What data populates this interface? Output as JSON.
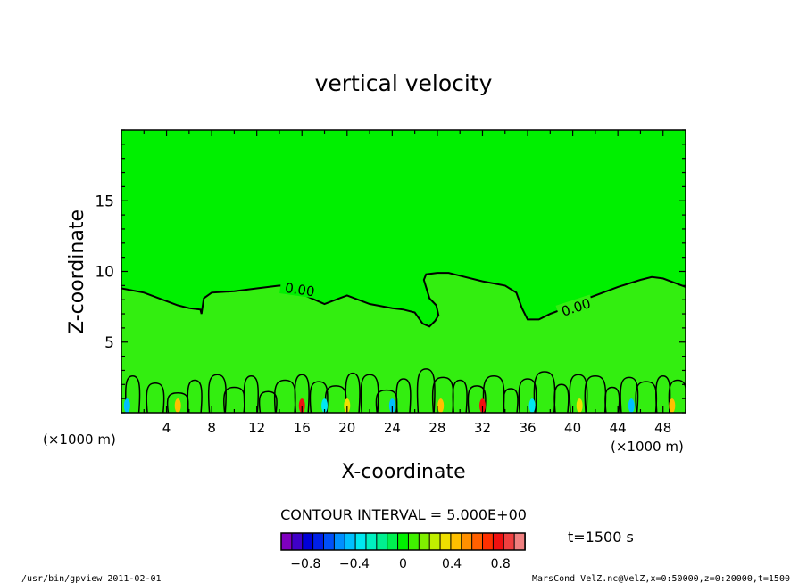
{
  "chart_data": {
    "type": "heatmap",
    "title": "vertical velocity",
    "xlabel": "X-coordinate",
    "ylabel": "Z-coordinate",
    "x_unit": "(×1000 m)",
    "x_ticks": [
      4,
      8,
      12,
      16,
      20,
      24,
      28,
      32,
      36,
      40,
      44,
      48
    ],
    "y_ticks": [
      5,
      10,
      15
    ],
    "xlim": [
      0,
      50
    ],
    "ylim": [
      0,
      20
    ],
    "contour_label": "0.00",
    "contour_interval_text": "CONTOUR INTERVAL = 5.000E+00",
    "time_text": "t=1500 s",
    "colorbar": {
      "tick_labels": [
        "-0.8",
        "-0.4",
        "0",
        "0.4",
        "0.8"
      ],
      "tick_values": [
        -0.8,
        -0.4,
        0,
        0.4,
        0.8
      ],
      "range": [
        -1.0,
        1.0
      ],
      "colors": [
        "#7f00bf",
        "#3f00c8",
        "#0000d8",
        "#0020e8",
        "#0050f8",
        "#0090ff",
        "#00c0ff",
        "#00e8f0",
        "#00f0c0",
        "#00f090",
        "#00f050",
        "#00f000",
        "#40f000",
        "#80f000",
        "#c0f000",
        "#f0e000",
        "#ffc000",
        "#ff9000",
        "#ff6000",
        "#ff3000",
        "#f01010",
        "#f04040",
        "#f08080"
      ]
    },
    "background_color": "#00f000",
    "lower_band_color": "#33ee10",
    "contour_line_color": "#000000",
    "zero_contour": {
      "x": [
        0,
        2,
        4,
        5,
        6,
        7,
        7.1,
        7.3,
        8,
        10,
        12,
        14,
        15,
        16,
        18,
        20,
        22,
        24,
        25,
        26,
        26.7,
        27.3,
        27.8,
        28.1,
        27.9,
        27.3,
        26.8,
        27,
        28,
        29,
        30,
        32,
        34,
        35,
        35.5,
        36,
        37,
        38,
        39,
        40,
        42,
        44,
        46,
        47,
        48,
        50
      ],
      "y": [
        8.8,
        8.5,
        7.9,
        7.6,
        7.4,
        7.3,
        7.0,
        8.1,
        8.5,
        8.6,
        8.8,
        9.0,
        8.9,
        8.4,
        7.7,
        8.3,
        7.7,
        7.4,
        7.3,
        7.1,
        6.3,
        6.1,
        6.5,
        6.9,
        7.6,
        8.1,
        9.4,
        9.8,
        9.9,
        9.9,
        9.7,
        9.3,
        9.0,
        8.5,
        7.4,
        6.6,
        6.6,
        7.0,
        7.3,
        7.7,
        8.3,
        8.9,
        9.4,
        9.6,
        9.5,
        8.9
      ]
    }
  },
  "footer": {
    "left": "/usr/bin/gpview  2011-02-01",
    "right": "MarsCond_VelZ.nc@VelZ,x=0:50000,z=0:20000,t=1500"
  }
}
